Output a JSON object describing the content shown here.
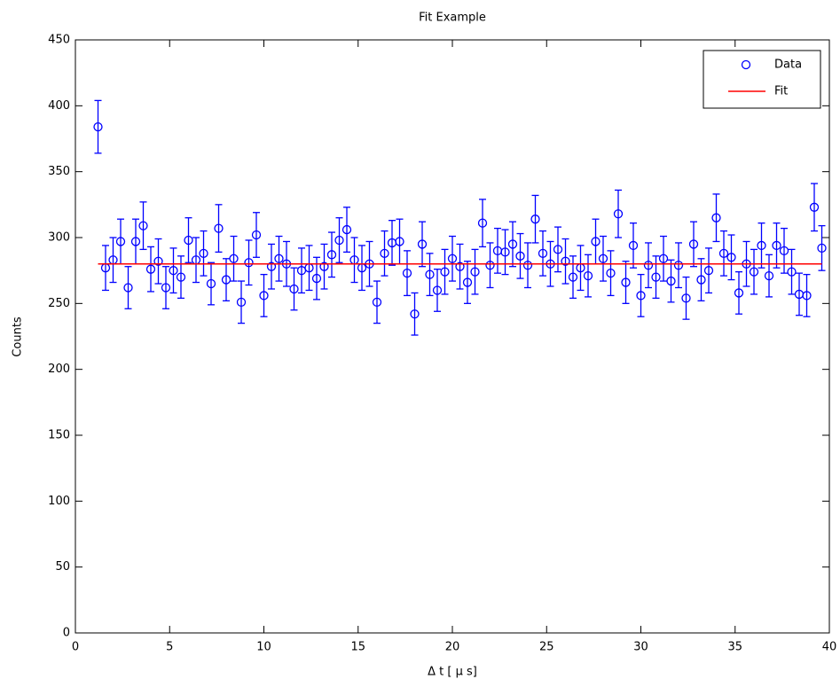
{
  "chart_data": {
    "type": "errorbar",
    "title": "Fit Example",
    "x_label": "Δ t [ μ s]",
    "y_label": "Counts",
    "xlim": [
      0,
      40
    ],
    "xticks": [
      0,
      5,
      10,
      15,
      20,
      25,
      30,
      35,
      40
    ],
    "ylim": [
      0,
      450
    ],
    "yticks": [
      0,
      50,
      100,
      150,
      200,
      250,
      300,
      350,
      400,
      450
    ],
    "legend": "upper right",
    "series": [
      {
        "name": "Data",
        "color": "#0000ff",
        "marker": "o",
        "x": [
          1.2,
          1.6,
          2.0,
          2.4,
          2.8,
          3.2,
          3.6,
          4.0,
          4.4,
          4.8,
          5.2,
          5.6,
          6.0,
          6.4,
          6.8,
          7.2,
          7.6,
          8.0,
          8.4,
          8.8,
          9.2,
          9.6,
          10.0,
          10.4,
          10.8,
          11.2,
          11.6,
          12.0,
          12.4,
          12.8,
          13.2,
          13.6,
          14.0,
          14.4,
          14.8,
          15.2,
          15.6,
          16.0,
          16.4,
          16.8,
          17.2,
          17.6,
          18.0,
          18.4,
          18.8,
          19.2,
          19.6,
          20.0,
          20.4,
          20.8,
          21.2,
          21.6,
          22.0,
          22.4,
          22.8,
          23.2,
          23.6,
          24.0,
          24.4,
          24.8,
          25.2,
          25.6,
          26.0,
          26.4,
          26.8,
          27.2,
          27.6,
          28.0,
          28.4,
          28.8,
          29.2,
          29.6,
          30.0,
          30.4,
          30.8,
          31.2,
          31.6,
          32.0,
          32.4,
          32.8,
          33.2,
          33.6,
          34.0,
          34.4,
          34.8,
          35.2,
          35.6,
          36.0,
          36.4,
          36.8,
          37.2,
          37.6,
          38.0,
          38.4,
          38.8,
          39.2,
          39.6
        ],
        "values": [
          384,
          277,
          283,
          297,
          262,
          297,
          309,
          276,
          282,
          262,
          275,
          270,
          298,
          283,
          288,
          265,
          307,
          268,
          284,
          251,
          281,
          302,
          256,
          278,
          284,
          280,
          261,
          275,
          277,
          269,
          278,
          287,
          298,
          306,
          283,
          277,
          280,
          251,
          288,
          296,
          297,
          273,
          242,
          295,
          272,
          260,
          274,
          284,
          278,
          266,
          274,
          311,
          279,
          290,
          289,
          295,
          286,
          279,
          314,
          288,
          280,
          291,
          282,
          270,
          277,
          271,
          297,
          284,
          273,
          318,
          266,
          294,
          256,
          279,
          270,
          284,
          267,
          279,
          254,
          295,
          268,
          275,
          315,
          288,
          285,
          258,
          280,
          274,
          294,
          271,
          294,
          290,
          274,
          257,
          256,
          323,
          292
        ],
        "errors": [
          20,
          17,
          17,
          17,
          16,
          17,
          18,
          17,
          17,
          16,
          17,
          16,
          17,
          17,
          17,
          16,
          18,
          16,
          17,
          16,
          17,
          17,
          16,
          17,
          17,
          17,
          16,
          17,
          17,
          16,
          17,
          17,
          17,
          17,
          17,
          17,
          17,
          16,
          17,
          17,
          17,
          17,
          16,
          17,
          16,
          16,
          17,
          17,
          17,
          16,
          17,
          18,
          17,
          17,
          17,
          17,
          17,
          17,
          18,
          17,
          17,
          17,
          17,
          16,
          17,
          16,
          17,
          17,
          17,
          18,
          16,
          17,
          16,
          17,
          16,
          17,
          16,
          17,
          16,
          17,
          16,
          17,
          18,
          17,
          17,
          16,
          17,
          17,
          17,
          16,
          17,
          17,
          17,
          16,
          16,
          18,
          17
        ]
      },
      {
        "name": "Fit",
        "color": "#ff0000",
        "x": [
          1.2,
          39.6
        ],
        "values": [
          280,
          280
        ]
      }
    ]
  }
}
